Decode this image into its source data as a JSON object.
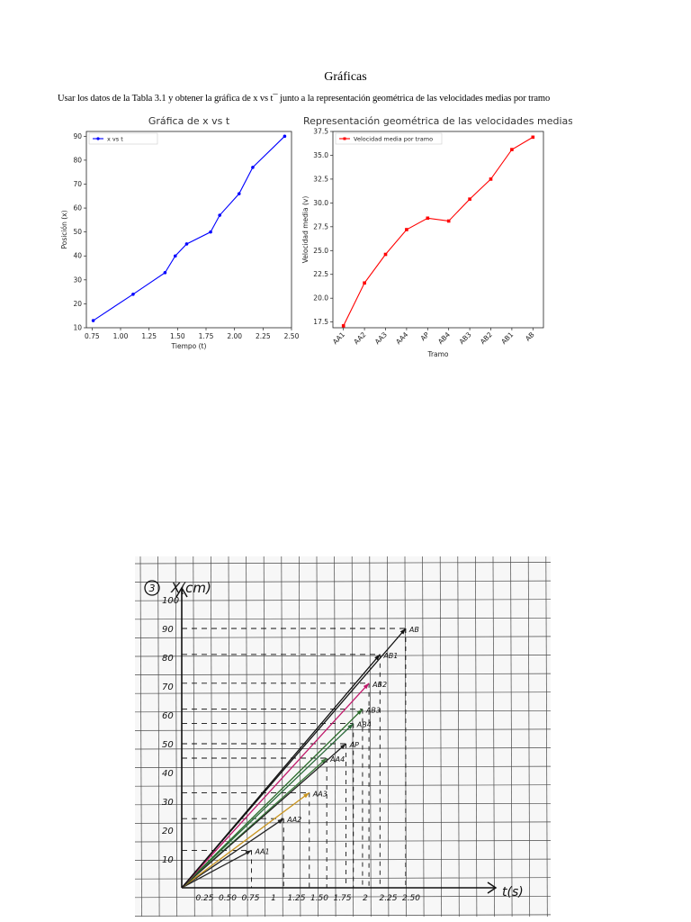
{
  "page": {
    "title": "Gráficas",
    "instruction": "Usar los datos de la Tabla 3.1 y obtener la gráfica de x vs t¯ junto a la representación geométrica de las velocidades medias por tramo"
  },
  "chart_data": [
    {
      "type": "line",
      "title": "Gráfica de x vs t",
      "xlabel": "Tiempo (t)",
      "ylabel": "Posición (x)",
      "xlim": [
        0.7,
        2.5
      ],
      "ylim": [
        10,
        92
      ],
      "xticks": [
        0.75,
        1.0,
        1.25,
        1.5,
        1.75,
        2.0,
        2.25,
        2.5
      ],
      "xtick_labels": [
        "0.75",
        "1.00",
        "1.25",
        "1.50",
        "1.75",
        "2.00",
        "2.25",
        "2.50"
      ],
      "yticks": [
        10,
        20,
        30,
        40,
        50,
        60,
        70,
        80,
        90
      ],
      "legend": "top-left",
      "grid": false,
      "series": [
        {
          "name": "x vs t",
          "color": "#0000ff",
          "x": [
            0.76,
            1.11,
            1.39,
            1.48,
            1.58,
            1.79,
            1.87,
            2.04,
            2.16,
            2.44
          ],
          "y": [
            13,
            24,
            33,
            40,
            45,
            50,
            57,
            66,
            77,
            90
          ]
        }
      ]
    },
    {
      "type": "line",
      "title": "Representación geométrica de las velocidades medias",
      "xlabel": "Tramo",
      "ylabel": "Velocidad media (v)",
      "ylim": [
        16.9,
        37.5
      ],
      "yticks": [
        17.5,
        20.0,
        22.5,
        25.0,
        27.5,
        30.0,
        32.5,
        35.0,
        37.5
      ],
      "ytick_labels": [
        "17.5",
        "20.0",
        "22.5",
        "25.0",
        "27.5",
        "30.0",
        "32.5",
        "35.0",
        "37.5"
      ],
      "categories": [
        "AA1",
        "AA2",
        "AA3",
        "AA4",
        "AP",
        "AB4",
        "AB3",
        "AB2",
        "AB1",
        "AB"
      ],
      "legend": "top-left",
      "grid": false,
      "series": [
        {
          "name": "Velocidad media por tramo",
          "color": "#ff0000",
          "values": [
            17.1,
            21.6,
            24.6,
            27.2,
            28.4,
            28.1,
            30.4,
            32.5,
            35.6,
            36.9
          ]
        }
      ]
    }
  ],
  "hand_graph": {
    "number": "3",
    "y_axis_label": "X(cm)",
    "x_axis_label": "t(s)",
    "y_ticks": [
      "100",
      "90",
      "80",
      "70",
      "60",
      "50",
      "40",
      "30",
      "20",
      "10"
    ],
    "x_ticks": [
      "0.25",
      "0.50",
      "0.75",
      "1",
      "1.25",
      "1.50",
      "1.75",
      "2",
      "2.25",
      "2.50"
    ],
    "lines": [
      {
        "label": "AA1",
        "t": 0.76,
        "x": 13,
        "color": "#222222"
      },
      {
        "label": "AA2",
        "t": 1.11,
        "x": 24,
        "color": "#222222"
      },
      {
        "label": "AA3",
        "t": 1.39,
        "x": 33,
        "color": "#c8941e"
      },
      {
        "label": "AA4",
        "t": 1.58,
        "x": 45,
        "color": "#3a7a3a"
      },
      {
        "label": "AP",
        "t": 1.79,
        "x": 50,
        "color": "#222222"
      },
      {
        "label": "AB4",
        "t": 1.87,
        "x": 57,
        "color": "#2a6a3a"
      },
      {
        "label": "AB3",
        "t": 1.97,
        "x": 62,
        "color": "#2a6a2a"
      },
      {
        "label": "AB2",
        "t": 2.04,
        "x": 71,
        "color": "#c0186a"
      },
      {
        "label": "AB1",
        "t": 2.16,
        "x": 81,
        "color": "#111111"
      },
      {
        "label": "AB",
        "t": 2.44,
        "x": 90,
        "color": "#111111"
      }
    ]
  }
}
